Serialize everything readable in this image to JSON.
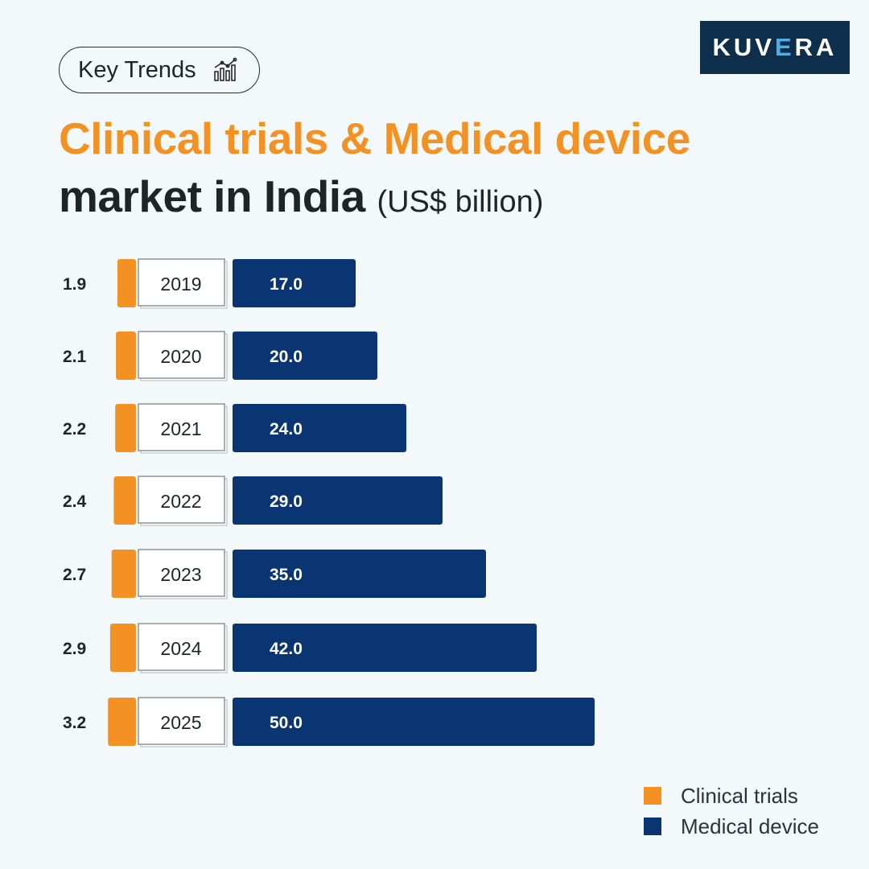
{
  "brand": {
    "logo_text_a": "KUV",
    "logo_text_b": "E",
    "logo_text_c": "RA"
  },
  "badge": {
    "label": "Key Trends",
    "icon": "chart-trend-icon"
  },
  "title": {
    "line1": "Clinical trials & Medical device",
    "line2": "market in India",
    "unit": "(US$ billion)"
  },
  "colors": {
    "orange": "#f39222",
    "navy": "#0a3573",
    "text_dark": "#1f2426"
  },
  "chart_data": {
    "type": "bar",
    "title": "Clinical trials & Medical device market in India (US$ billion)",
    "categories": [
      "2019",
      "2020",
      "2021",
      "2022",
      "2023",
      "2024",
      "2025"
    ],
    "series": [
      {
        "name": "Clinical trials",
        "values": [
          1.9,
          2.1,
          2.2,
          2.4,
          2.7,
          2.9,
          3.2
        ],
        "labels": [
          "1.9",
          "2.1",
          "2.2",
          "2.4",
          "2.7",
          "2.9",
          "3.2"
        ]
      },
      {
        "name": "Medical device",
        "values": [
          17.0,
          20.0,
          24.0,
          29.0,
          35.0,
          42.0,
          50.0
        ],
        "labels": [
          "17.0",
          "20.0",
          "24.0",
          "29.0",
          "35.0",
          "42.0",
          "50.0"
        ]
      }
    ],
    "orientation": "horizontal",
    "legend": "bottom-right"
  },
  "legend": {
    "items": [
      {
        "label": "Clinical trials",
        "color": "#f39222"
      },
      {
        "label": "Medical device",
        "color": "#0a3573"
      }
    ]
  }
}
